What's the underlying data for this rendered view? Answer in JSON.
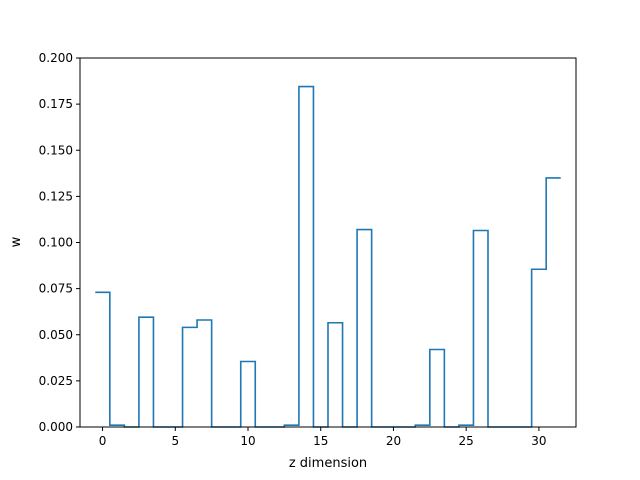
{
  "chart_data": {
    "type": "line",
    "style": "step",
    "xlabel": "z dimension",
    "ylabel": "w",
    "xlim": [
      -1.55,
      32.55
    ],
    "ylim": [
      0.0,
      0.2
    ],
    "xticks": [
      0,
      5,
      10,
      15,
      20,
      25,
      30
    ],
    "yticks": [
      0.0,
      0.025,
      0.05,
      0.075,
      0.1,
      0.125,
      0.15,
      0.175,
      0.2
    ],
    "ytick_labels": [
      "0.000",
      "0.025",
      "0.050",
      "0.075",
      "0.100",
      "0.125",
      "0.150",
      "0.175",
      "0.200"
    ],
    "grid": false,
    "line_color": "#1f77b4",
    "series": [
      {
        "x": [
          0,
          1,
          2,
          3,
          4,
          5,
          6,
          7,
          8,
          9,
          10,
          11,
          12,
          13,
          14,
          15,
          16,
          17,
          18,
          19,
          20,
          21,
          22,
          23,
          24,
          25,
          26,
          27,
          28,
          29,
          30,
          31
        ],
        "values": [
          0.073,
          0.001,
          0.0,
          0.0595,
          0.0,
          0.0,
          0.054,
          0.058,
          0.0,
          0.0,
          0.0355,
          0.0,
          0.0,
          0.001,
          0.1845,
          0.0,
          0.0565,
          0.0,
          0.107,
          0.0,
          0.0,
          0.0,
          0.001,
          0.042,
          0.0,
          0.001,
          0.1065,
          0.0,
          0.0,
          0.0,
          0.0855,
          0.135
        ]
      }
    ]
  }
}
